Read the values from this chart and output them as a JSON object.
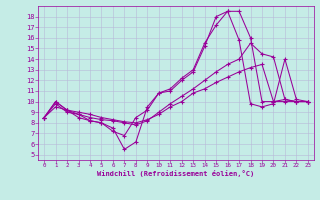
{
  "bg_color": "#c5ece6",
  "grid_color": "#b8b8d8",
  "line_color": "#990099",
  "xlabel": "Windchill (Refroidissement éolien,°C)",
  "xlim_min": -0.5,
  "xlim_max": 23.5,
  "ylim_min": 4.5,
  "ylim_max": 19.0,
  "xticks": [
    0,
    1,
    2,
    3,
    4,
    5,
    6,
    7,
    8,
    9,
    10,
    11,
    12,
    13,
    14,
    15,
    16,
    17,
    18,
    19,
    20,
    21,
    22,
    23
  ],
  "yticks": [
    5,
    6,
    7,
    8,
    9,
    10,
    11,
    12,
    13,
    14,
    15,
    16,
    17,
    18
  ],
  "lines": [
    [
      8.5,
      10.0,
      9.2,
      8.8,
      8.2,
      8.0,
      7.2,
      6.8,
      8.5,
      9.2,
      10.8,
      11.2,
      12.2,
      13.0,
      15.5,
      17.2,
      18.5,
      18.5,
      16.0,
      10.0,
      10.0,
      10.2,
      10.0,
      10.0
    ],
    [
      8.5,
      10.0,
      9.2,
      8.5,
      8.2,
      8.0,
      7.5,
      5.5,
      6.2,
      9.5,
      10.8,
      11.0,
      12.0,
      12.8,
      15.2,
      18.0,
      18.5,
      15.8,
      9.8,
      9.5,
      9.8,
      14.0,
      10.2,
      10.0
    ],
    [
      8.5,
      9.8,
      9.0,
      8.8,
      8.5,
      8.3,
      8.2,
      8.0,
      7.8,
      8.2,
      9.0,
      9.8,
      10.5,
      11.2,
      12.0,
      12.8,
      13.5,
      14.0,
      15.5,
      14.5,
      14.2,
      10.2,
      10.0,
      10.0
    ],
    [
      8.5,
      9.5,
      9.2,
      9.0,
      8.8,
      8.5,
      8.3,
      8.1,
      8.0,
      8.3,
      8.8,
      9.5,
      10.0,
      10.8,
      11.2,
      11.8,
      12.3,
      12.8,
      13.2,
      13.5,
      10.0,
      10.0,
      10.0,
      10.0
    ]
  ]
}
